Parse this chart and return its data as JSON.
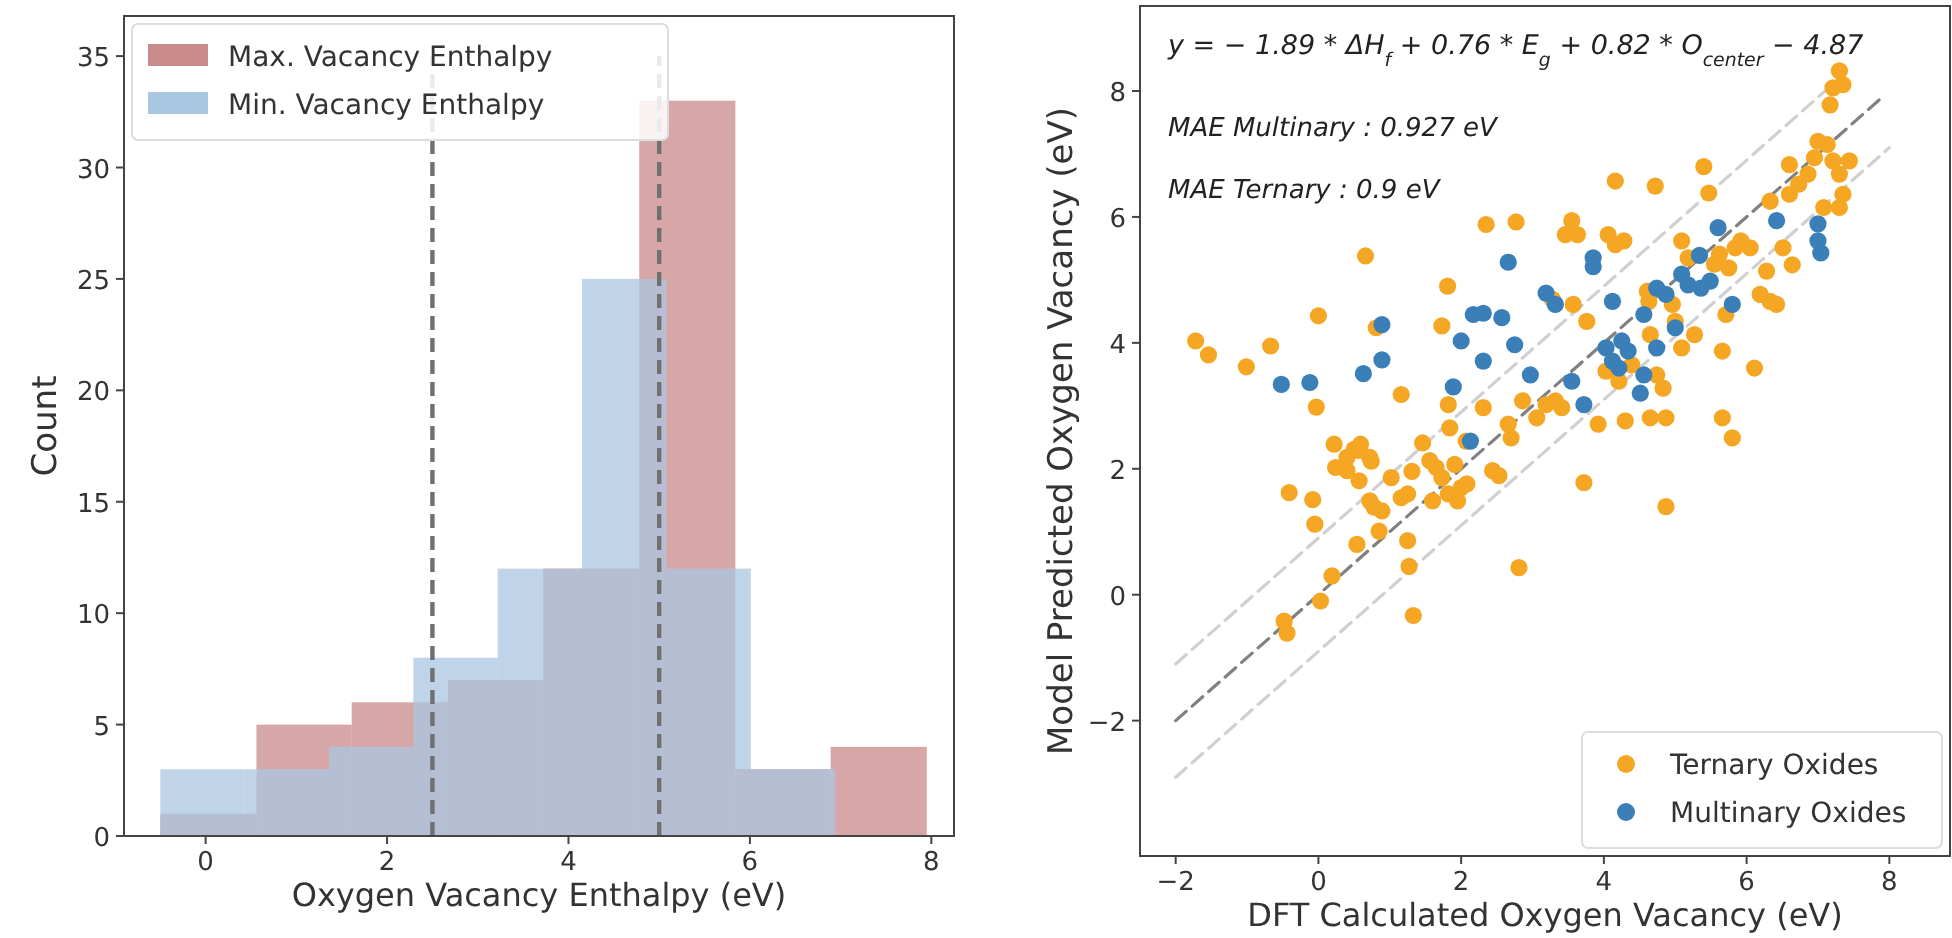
{
  "chart_data": [
    {
      "type": "histogram",
      "xlabel": "Oxygen Vacancy Enthalpy (eV)",
      "ylabel": "Count",
      "xlim": [
        -0.9,
        8.25
      ],
      "ylim": [
        0,
        36.8
      ],
      "bins": [
        -0.5,
        0.56,
        1.61,
        2.67,
        3.72,
        4.78,
        5.84,
        6.89,
        7.95
      ],
      "xticks": [
        0,
        2,
        4,
        6,
        8
      ],
      "yticks": [
        0,
        5,
        10,
        15,
        20,
        25,
        30,
        35
      ],
      "legend": "top left",
      "grid": false,
      "series": [
        {
          "name": "Max. Vacancy Enthalpy",
          "color": "#c98a8a",
          "values": [
            1,
            5,
            6,
            7,
            12,
            33,
            3,
            4
          ]
        },
        {
          "name": "Min. Vacancy Enthalpy",
          "color": "#a9c6e0",
          "bins": [
            -0.5,
            0.43,
            1.36,
            2.29,
            3.22,
            4.15,
            5.08,
            6.01,
            6.94
          ],
          "values": [
            3,
            3,
            4,
            8,
            12,
            25,
            12,
            3
          ]
        }
      ],
      "ref_lines": [
        {
          "axis": "x",
          "value": 2.5,
          "color": "#707070",
          "line_style": "dashed"
        },
        {
          "axis": "x",
          "value": 5,
          "color": "#707070",
          "line_style": "dashed"
        }
      ]
    },
    {
      "type": "scatter",
      "xlabel": "DFT Calculated Oxygen Vacancy (eV)",
      "ylabel": "Model Predicted Oxygen Vacancy (eV)",
      "xlim": [
        -2.5,
        8.85
      ],
      "ylim": [
        -4.15,
        9.35
      ],
      "xticks": [
        {
          "value": -2,
          "label": "−2"
        },
        0,
        2,
        4,
        6,
        8
      ],
      "yticks": [
        {
          "value": -2,
          "label": "−2"
        },
        0,
        2,
        4,
        6,
        8
      ],
      "legend": "bottom right",
      "grid": false,
      "marker": "circle",
      "annotations": [
        "y = − 1.89 * ΔH$_{f}$ + 0.76 * E$_{g}$ + 0.82 * O$_{center}$ − 4.87",
        "MAE  Multinary : 0.927  eV",
        "MAE  Ternary : 0.9  eV"
      ],
      "series": [
        {
          "type": "line",
          "marker": "none",
          "color": "#d0d0d0",
          "line_style": "dashed",
          "x": [
            -2,
            7.4
          ],
          "values": [
            -1.1,
            8.3
          ]
        },
        {
          "type": "line",
          "marker": "none",
          "color": "#d0d0d0",
          "line_style": "dashed",
          "x": [
            -2,
            8
          ],
          "values": [
            -2.9,
            7.1
          ]
        },
        {
          "type": "line",
          "marker": "none",
          "color": "#808080",
          "line_style": "dashed",
          "x": [
            -2,
            7.9
          ],
          "values": [
            -2,
            7.9
          ]
        },
        {
          "name": "Ternary Oxides",
          "color": "#f5a623",
          "x": [
            -1.72,
            -1.54,
            -1.01,
            -0.67,
            0.0,
            -0.03,
            0.66,
            0.81,
            1.16,
            1.81,
            1.73,
            0.22,
            0.5,
            0.59,
            0.72,
            1.46,
            1.82,
            1.84,
            2.07,
            2.31,
            2.35,
            2.77,
            2.86,
            2.66,
            2.7,
            3.06,
            3.19,
            3.32,
            3.41,
            3.28,
            3.57,
            3.55,
            3.46,
            3.63,
            3.76,
            3.92,
            4.06,
            4.16,
            4.28,
            4.16,
            4.72,
            4.3,
            4.65,
            4.87,
            4.03,
            4.21,
            4.39,
            4.61,
            4.63,
            4.65,
            4.83,
            4.74,
            4.96,
            5.0,
            5.09,
            5.09,
            5.18,
            5.27,
            5.4,
            5.47,
            5.55,
            5.62,
            5.75,
            5.84,
            5.92,
            6.05,
            5.71,
            5.66,
            6.11,
            5.66,
            5.8,
            6.19,
            6.28,
            6.33,
            6.42,
            6.51,
            6.64,
            6.33,
            6.6,
            6.6,
            6.73,
            6.86,
            6.95,
            7.0,
            7.13,
            7.21,
            7.3,
            7.44,
            7.35,
            7.3,
            7.08,
            7.17,
            7.21,
            7.3,
            7.35,
            0.24,
            0.4,
            0.56,
            0.57,
            0.74,
            0.4,
            -0.41,
            -0.08,
            -0.05,
            0.54,
            0.85,
            0.78,
            0.72,
            0.89,
            1.02,
            1.16,
            1.25,
            1.31,
            1.56,
            1.65,
            1.73,
            1.6,
            1.82,
            1.95,
            2.0,
            2.08,
            1.91,
            2.44,
            2.53,
            1.25,
            1.27,
            0.19,
            0.03,
            -0.48,
            -0.44,
            1.33,
            2.81,
            3.72,
            4.87
          ],
          "values": [
            4.03,
            3.81,
            3.62,
            3.95,
            4.43,
            2.98,
            5.38,
            4.24,
            3.18,
            4.9,
            4.27,
            2.39,
            2.31,
            2.39,
            2.18,
            2.41,
            3.02,
            2.65,
            2.44,
            2.97,
            5.88,
            5.92,
            3.08,
            2.71,
            2.49,
            2.81,
            3.02,
            3.08,
            2.97,
            4.69,
            4.61,
            5.94,
            5.72,
            5.72,
            4.34,
            2.71,
            5.72,
            5.56,
            5.62,
            6.57,
            6.49,
            2.76,
            2.81,
            2.81,
            3.55,
            3.39,
            3.65,
            4.82,
            4.66,
            4.13,
            3.28,
            3.49,
            4.61,
            4.34,
            3.92,
            5.62,
            5.35,
            4.13,
            6.8,
            6.38,
            5.25,
            5.41,
            5.19,
            5.51,
            5.62,
            5.51,
            4.45,
            3.87,
            3.6,
            2.81,
            2.49,
            4.77,
            5.14,
            4.66,
            4.61,
            5.51,
            5.24,
            6.25,
            6.36,
            6.83,
            6.52,
            6.68,
            6.94,
            7.2,
            7.15,
            6.89,
            6.68,
            6.89,
            6.36,
            6.15,
            6.15,
            7.78,
            8.05,
            8.32,
            8.1,
            2.02,
            2.18,
            2.29,
            1.81,
            2.12,
            1.97,
            1.62,
            1.51,
            1.12,
            0.8,
            1.01,
            1.39,
            1.49,
            1.33,
            1.86,
            1.54,
            1.6,
            1.96,
            2.13,
            2.02,
            1.86,
            1.49,
            1.6,
            1.49,
            1.7,
            1.76,
            2.07,
            1.97,
            1.89,
            0.86,
            0.45,
            0.3,
            -0.1,
            -0.42,
            -0.61,
            -0.33,
            0.43,
            1.78,
            1.4
          ]
        },
        {
          "name": "Multinary Oxides",
          "color": "#3a7fb8",
          "x": [
            0.89,
            -0.52,
            -0.12,
            0.63,
            0.89,
            2.0,
            2.17,
            2.31,
            2.57,
            2.31,
            2.75,
            2.66,
            3.19,
            3.32,
            2.97,
            1.89,
            3.85,
            3.85,
            4.12,
            3.55,
            3.72,
            4.03,
            4.12,
            4.25,
            4.34,
            4.21,
            4.56,
            4.74,
            4.87,
            5.09,
            5.18,
            5.34,
            5.36,
            5.49,
            5.6,
            4.56,
            4.74,
            5.0,
            4.51,
            6.42,
            7.0,
            7.0,
            7.04,
            5.8,
            2.13
          ],
          "values": [
            4.29,
            3.34,
            3.37,
            3.51,
            3.73,
            4.03,
            4.45,
            4.47,
            4.4,
            3.71,
            3.97,
            5.28,
            4.79,
            4.61,
            3.49,
            3.3,
            5.35,
            5.21,
            4.66,
            3.39,
            3.02,
            3.92,
            3.71,
            4.03,
            3.87,
            3.6,
            4.45,
            4.87,
            4.77,
            5.09,
            4.92,
            5.39,
            4.87,
            4.98,
            5.83,
            3.49,
            3.92,
            4.24,
            3.2,
            5.94,
            5.89,
            5.62,
            5.43,
            4.61,
            2.44
          ]
        }
      ]
    }
  ]
}
